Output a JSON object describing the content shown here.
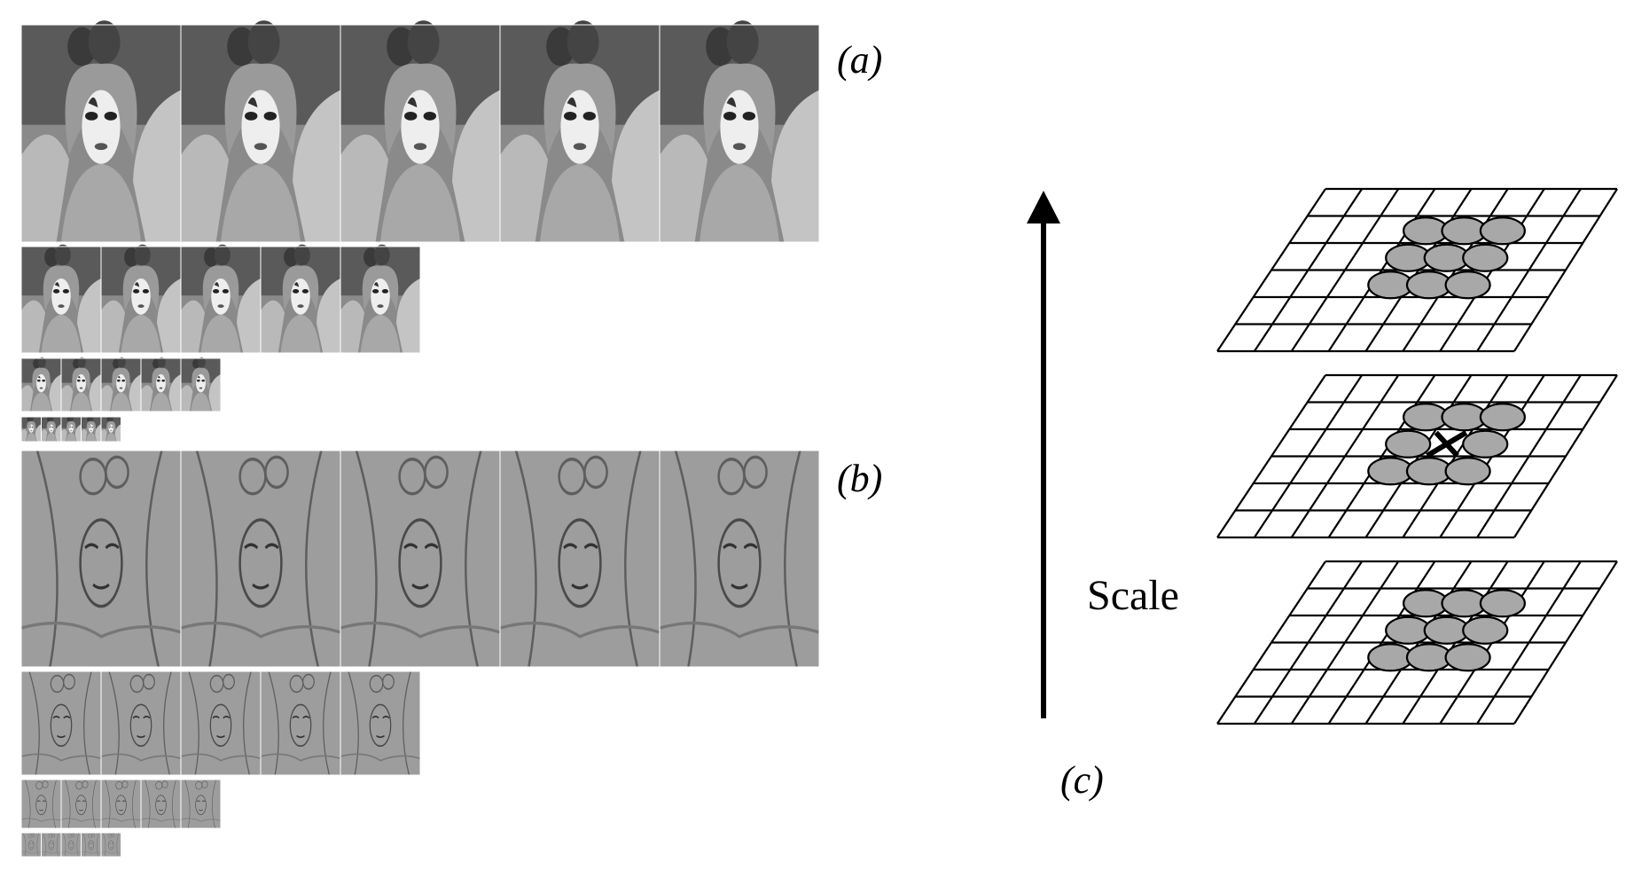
{
  "labels": {
    "panel_a": "(a)",
    "panel_b": "(b)",
    "panel_c": "(c)",
    "scale_axis": "Scale"
  },
  "pyramid": {
    "octaves": 4,
    "images_per_octave": 5
  },
  "dog_pyramid": {
    "octaves": 4,
    "images_per_octave": 5
  },
  "scale_space": {
    "layers": 3,
    "grid_columns": 8,
    "grid_rows": 6,
    "neighbor_blobs_per_layer": 9,
    "center_layer_has_sample_marker": true
  },
  "colors": {
    "line": "#000000",
    "blob_fill": "#a8a8a8",
    "dog_gray": "#9d9d9d"
  }
}
